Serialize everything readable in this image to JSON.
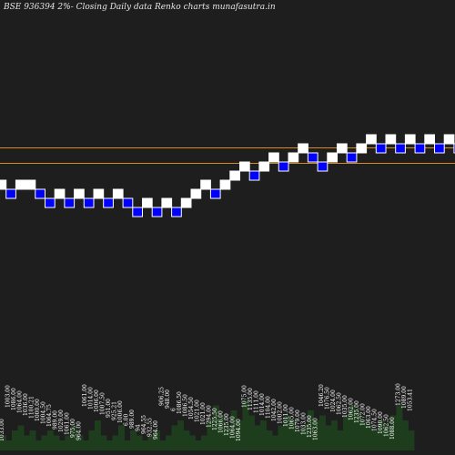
{
  "header": {
    "title": "BSE 936394  2%-  Closing Daily data  Renko  charts munafasutra.in"
  },
  "colors": {
    "background": "#1e1e1e",
    "up_brick": "#ffffff",
    "down_brick": "#0000ff",
    "brick_outline": "#ffffff",
    "reference_line": "#d98a1f",
    "volume_bar": "#1d3d1d",
    "volume_label": "#ffffff"
  },
  "chart_data": {
    "type": "renko",
    "title": "BSE 936394  2%-  Closing Daily data  Renko  charts munafasutra.in",
    "bricks": [
      {
        "dir": "up",
        "level": 9
      },
      {
        "dir": "down",
        "level": 8
      },
      {
        "dir": "up",
        "level": 9
      },
      {
        "dir": "up",
        "level": 9
      },
      {
        "dir": "down",
        "level": 8
      },
      {
        "dir": "down",
        "level": 7
      },
      {
        "dir": "up",
        "level": 8
      },
      {
        "dir": "down",
        "level": 7
      },
      {
        "dir": "up",
        "level": 8
      },
      {
        "dir": "down",
        "level": 7
      },
      {
        "dir": "up",
        "level": 8
      },
      {
        "dir": "down",
        "level": 7
      },
      {
        "dir": "up",
        "level": 8
      },
      {
        "dir": "down",
        "level": 7
      },
      {
        "dir": "down",
        "level": 6
      },
      {
        "dir": "up",
        "level": 7
      },
      {
        "dir": "down",
        "level": 6
      },
      {
        "dir": "up",
        "level": 7
      },
      {
        "dir": "down",
        "level": 6
      },
      {
        "dir": "up",
        "level": 7
      },
      {
        "dir": "up",
        "level": 8
      },
      {
        "dir": "up",
        "level": 9
      },
      {
        "dir": "down",
        "level": 8
      },
      {
        "dir": "up",
        "level": 9
      },
      {
        "dir": "up",
        "level": 10
      },
      {
        "dir": "up",
        "level": 11
      },
      {
        "dir": "down",
        "level": 10
      },
      {
        "dir": "up",
        "level": 11
      },
      {
        "dir": "up",
        "level": 12
      },
      {
        "dir": "down",
        "level": 11
      },
      {
        "dir": "up",
        "level": 12
      },
      {
        "dir": "up",
        "level": 13
      },
      {
        "dir": "down",
        "level": 12
      },
      {
        "dir": "down",
        "level": 11
      },
      {
        "dir": "up",
        "level": 12
      },
      {
        "dir": "up",
        "level": 13
      },
      {
        "dir": "down",
        "level": 12
      },
      {
        "dir": "up",
        "level": 13
      },
      {
        "dir": "up",
        "level": 14
      },
      {
        "dir": "down",
        "level": 13
      },
      {
        "dir": "up",
        "level": 14
      },
      {
        "dir": "down",
        "level": 13
      },
      {
        "dir": "up",
        "level": 14
      },
      {
        "dir": "down",
        "level": 13
      },
      {
        "dir": "up",
        "level": 14
      },
      {
        "dir": "down",
        "level": 13
      },
      {
        "dir": "up",
        "level": 14
      },
      {
        "dir": "down",
        "level": 13
      },
      {
        "dir": "down",
        "level": 12
      },
      {
        "dir": "up",
        "level": 13
      },
      {
        "dir": "down",
        "level": 12
      },
      {
        "dir": "up",
        "level": 13
      },
      {
        "dir": "up",
        "level": 14
      },
      {
        "dir": "down",
        "level": 13
      },
      {
        "dir": "up",
        "level": 14
      },
      {
        "dir": "down",
        "level": 13
      }
    ],
    "reference_levels": [
      13.55,
      11.85
    ],
    "volume_labels": [
      "1033.00",
      "1003.00",
      "1086.00",
      "1064.00",
      "1036.00",
      "1100.21",
      "1000.00",
      "1004.50",
      "1064.75",
      "989.00",
      "1029.00",
      "1061.00",
      "975.00",
      "964.00",
      "1061.00",
      "1014.00",
      "1006.00",
      "1007.50",
      "951.00",
      "925.21",
      "1006.00",
      "6.00",
      "989.00",
      "94",
      "964.55",
      "932.55",
      "964.00",
      "906.25",
      "948.00",
      "6",
      "1086.50",
      "1086.50",
      "1054.50",
      "1021.00",
      "1021.00",
      "1294.00",
      "1225.50",
      "1066.00",
      "1235.00",
      "1064.00",
      "1094.00",
      "1075.00",
      "1135.00",
      "1111.00",
      "1014.00",
      "1104.00",
      "1042.00",
      "1002.00",
      "1011.00",
      "1065.00",
      "1079.00",
      "1033.00",
      "1235.00",
      "1063.00",
      "1046.20",
      "1076.50",
      "1024.00",
      "1062.50",
      "1035.00",
      "1062.00",
      "1235.00",
      "1072.00",
      "1063.00",
      "1074.50",
      "1090.00",
      "1062.50",
      "1088.00",
      "1273.00",
      "1089.00",
      "1053.41"
    ],
    "volume_values": [
      3,
      2,
      4,
      5,
      3,
      4,
      2,
      3,
      4,
      3,
      2,
      3,
      5,
      3,
      2,
      4,
      6,
      3,
      2,
      3,
      5,
      2,
      4,
      3,
      2,
      3,
      4,
      2,
      3,
      5,
      6,
      4,
      3,
      2,
      3,
      6,
      9,
      7,
      5,
      8,
      6,
      10,
      7,
      5,
      6,
      4,
      3,
      5,
      7,
      6,
      4,
      5,
      8,
      6,
      7,
      5,
      6,
      4,
      7,
      9,
      8,
      6,
      5,
      4,
      6,
      5,
      7,
      9,
      6,
      4
    ]
  }
}
